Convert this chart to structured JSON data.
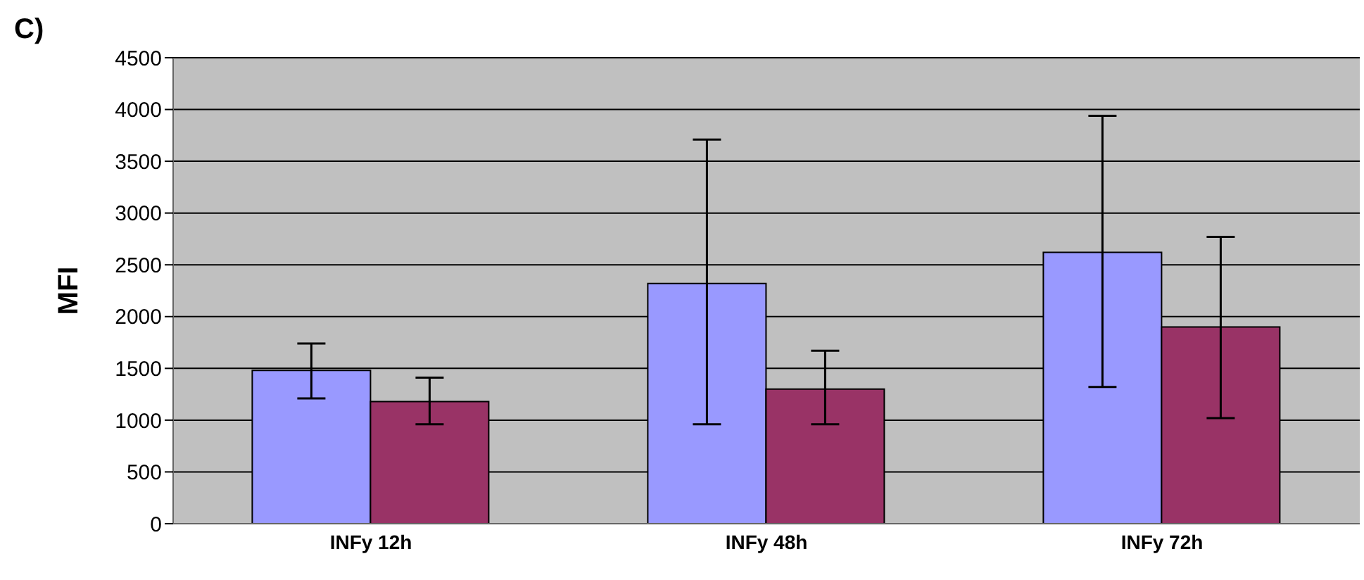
{
  "chart_data": {
    "type": "bar",
    "ylabel": "MFI",
    "annotations": [
      "C)"
    ],
    "categories": [
      "INFy 12h",
      "INFy 48h",
      "INFy 72h"
    ],
    "series": [
      {
        "color": "#9999ff",
        "values": [
          1480,
          2320,
          2620
        ],
        "errors": [
          [
            1210,
            1740
          ],
          [
            960,
            3710
          ],
          [
            1320,
            3940
          ]
        ]
      },
      {
        "color": "#993366",
        "values": [
          1180,
          1300,
          1900
        ],
        "errors": [
          [
            960,
            1410
          ],
          [
            960,
            1670
          ],
          [
            1020,
            2770
          ]
        ]
      }
    ],
    "ylim": [
      0,
      4500
    ],
    "yticks": [
      0,
      500,
      1000,
      1500,
      2000,
      2500,
      3000,
      3500,
      4000,
      4500
    ],
    "grid": "y"
  }
}
